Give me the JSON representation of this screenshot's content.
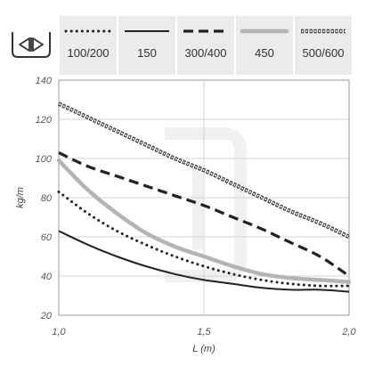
{
  "chart_data": {
    "type": "line",
    "xlabel": "L (m)",
    "ylabel": "kg/m",
    "xlim": [
      1.0,
      2.0
    ],
    "ylim": [
      20,
      140
    ],
    "x_ticks": [
      "1,0",
      "1,5",
      "2,0"
    ],
    "y_ticks": [
      "140",
      "120",
      "100",
      "80",
      "60",
      "40",
      "20"
    ],
    "grid": true,
    "legend_position": "top",
    "symbol_icon": "arrows-in-tray-icon",
    "series": [
      {
        "name": "100/200",
        "style": "dotted",
        "color": "#222222",
        "x": [
          1.0,
          1.1,
          1.2,
          1.3,
          1.4,
          1.5,
          1.6,
          1.7,
          1.8,
          1.9,
          2.0
        ],
        "y": [
          83,
          72,
          63,
          56,
          50,
          45,
          41,
          38,
          36,
          35,
          35
        ]
      },
      {
        "name": "150",
        "style": "solid",
        "color": "#222222",
        "x": [
          1.0,
          1.1,
          1.2,
          1.3,
          1.4,
          1.5,
          1.6,
          1.7,
          1.8,
          1.9,
          2.0
        ],
        "y": [
          63,
          56,
          50,
          45,
          41,
          38,
          36,
          34,
          33,
          33,
          32
        ]
      },
      {
        "name": "300/400",
        "style": "dashed",
        "color": "#222222",
        "x": [
          1.0,
          1.1,
          1.2,
          1.3,
          1.4,
          1.5,
          1.6,
          1.7,
          1.8,
          1.9,
          2.0
        ],
        "y": [
          103,
          96,
          91,
          86,
          81,
          76,
          70,
          64,
          57,
          50,
          40
        ]
      },
      {
        "name": "450",
        "style": "thick-gray",
        "color": "#b4b4b4",
        "x": [
          1.0,
          1.1,
          1.2,
          1.3,
          1.4,
          1.5,
          1.6,
          1.7,
          1.8,
          1.9,
          2.0
        ],
        "y": [
          99,
          84,
          72,
          62,
          55,
          50,
          45,
          41,
          39,
          38,
          37
        ]
      },
      {
        "name": "500/600",
        "style": "chain",
        "color": "#333333",
        "x": [
          1.0,
          1.1,
          1.2,
          1.3,
          1.4,
          1.5,
          1.6,
          1.7,
          1.8,
          1.9,
          2.0
        ],
        "y": [
          128,
          121,
          114,
          107,
          100,
          94,
          87,
          80,
          73,
          67,
          60
        ]
      }
    ]
  }
}
